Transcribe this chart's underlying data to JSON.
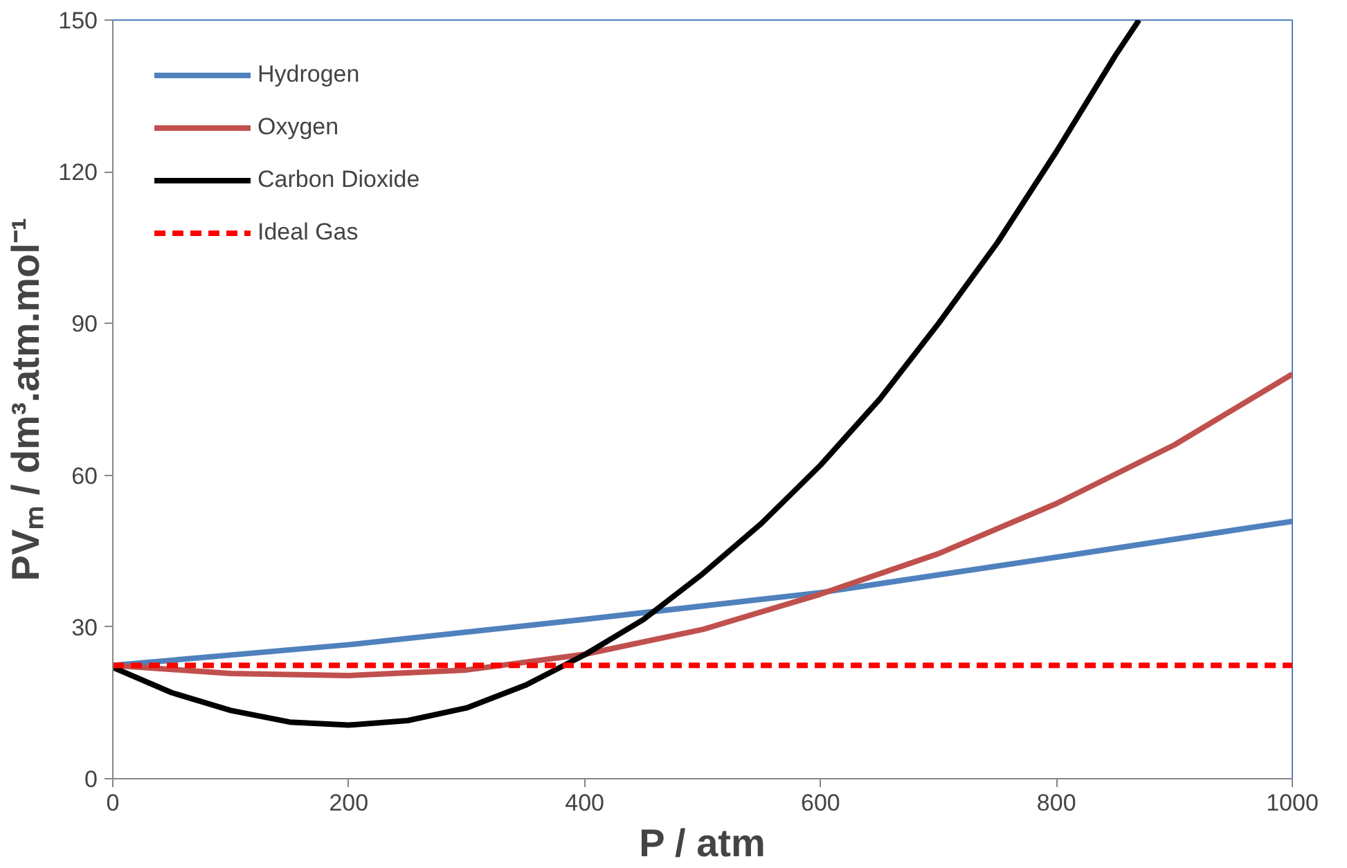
{
  "chart_data": {
    "type": "line",
    "xlabel": "P / atm",
    "ylabel": "PVₘ / dm³.atm.mol⁻¹",
    "xlim": [
      0,
      1000
    ],
    "ylim": [
      0,
      150
    ],
    "xticks": [
      0,
      200,
      400,
      600,
      800,
      1000
    ],
    "yticks": [
      0,
      30,
      60,
      90,
      120,
      150
    ],
    "grid": false,
    "legend": "top left",
    "marker": "none",
    "series": [
      {
        "name": "Hydrogen",
        "color": "#4f81bd",
        "x": [
          0,
          200,
          400,
          600,
          800,
          1000
        ],
        "values": [
          22.4,
          26.5,
          31.5,
          36.8,
          43.8,
          50.9
        ]
      },
      {
        "name": "Oxygen",
        "color": "#c0504d",
        "x": [
          0,
          100,
          200,
          300,
          400,
          500,
          600,
          700,
          800,
          900,
          1000
        ],
        "values": [
          22.4,
          20.8,
          20.4,
          21.5,
          24.6,
          29.5,
          36.5,
          44.5,
          54.4,
          66,
          80
        ]
      },
      {
        "name": "Carbon Dioxide",
        "color": "#000000",
        "x": [
          0,
          50,
          100,
          150,
          200,
          250,
          300,
          350,
          400,
          450,
          500,
          550,
          600,
          650,
          700,
          750,
          800,
          850,
          870
        ],
        "values": [
          22,
          17,
          13.5,
          11.2,
          10.6,
          11.5,
          14,
          18.5,
          24.5,
          31.5,
          40.5,
          50.5,
          62,
          75,
          90,
          106,
          124,
          143,
          150
        ]
      },
      {
        "name": "Ideal Gas",
        "color": "#ff0000",
        "line_style": "dashed",
        "x": [
          0,
          1000
        ],
        "values": [
          22.4,
          22.4
        ]
      }
    ]
  }
}
